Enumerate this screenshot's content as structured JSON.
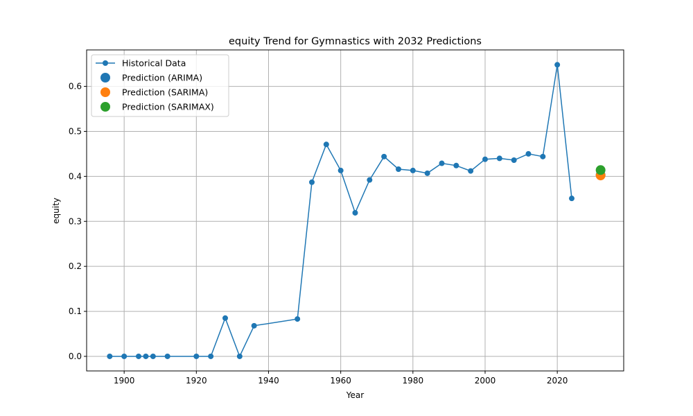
{
  "colors": {
    "historical": "#1f77b4",
    "arima": "#1f77b4",
    "sarima": "#ff7f0e",
    "sarimax": "#2ca02c",
    "grid": "#b0b0b0"
  },
  "chart_data": {
    "type": "line",
    "title": "equity Trend for Gymnastics with 2032 Predictions",
    "xlabel": "Year",
    "ylabel": "equity",
    "xlim": [
      1889.6,
      2038.4
    ],
    "ylim": [
      -0.0324,
      0.681
    ],
    "xticks": [
      1900,
      1920,
      1940,
      1960,
      1980,
      2000,
      2020
    ],
    "yticks": [
      0.0,
      0.1,
      0.2,
      0.3,
      0.4,
      0.5,
      0.6
    ],
    "grid": true,
    "legend_position": "top-left",
    "legend": [
      "Historical Data",
      "Prediction (ARIMA)",
      "Prediction (SARIMA)",
      "Prediction (SARIMAX)"
    ],
    "series": [
      {
        "name": "Historical Data",
        "kind": "line-marker",
        "x": [
          1896,
          1900,
          1904,
          1906,
          1908,
          1912,
          1920,
          1924,
          1928,
          1932,
          1936,
          1948,
          1952,
          1956,
          1960,
          1964,
          1968,
          1972,
          1976,
          1980,
          1984,
          1988,
          1992,
          1996,
          2000,
          2004,
          2008,
          2012,
          2016,
          2020,
          2024
        ],
        "y": [
          0.0,
          0.0,
          0.0,
          0.0,
          0.0,
          0.0,
          0.0,
          0.0,
          0.085,
          0.0,
          0.068,
          0.083,
          0.387,
          0.471,
          0.413,
          0.319,
          0.392,
          0.444,
          0.416,
          0.413,
          0.407,
          0.429,
          0.424,
          0.412,
          0.438,
          0.44,
          0.436,
          0.45,
          0.444,
          0.648,
          0.351
        ]
      },
      {
        "name": "Prediction (ARIMA)",
        "kind": "point",
        "x": [
          2032
        ],
        "y": [
          0.403
        ]
      },
      {
        "name": "Prediction (SARIMA)",
        "kind": "point",
        "x": [
          2032
        ],
        "y": [
          0.402
        ]
      },
      {
        "name": "Prediction (SARIMAX)",
        "kind": "point",
        "x": [
          2032
        ],
        "y": [
          0.414
        ]
      }
    ]
  }
}
